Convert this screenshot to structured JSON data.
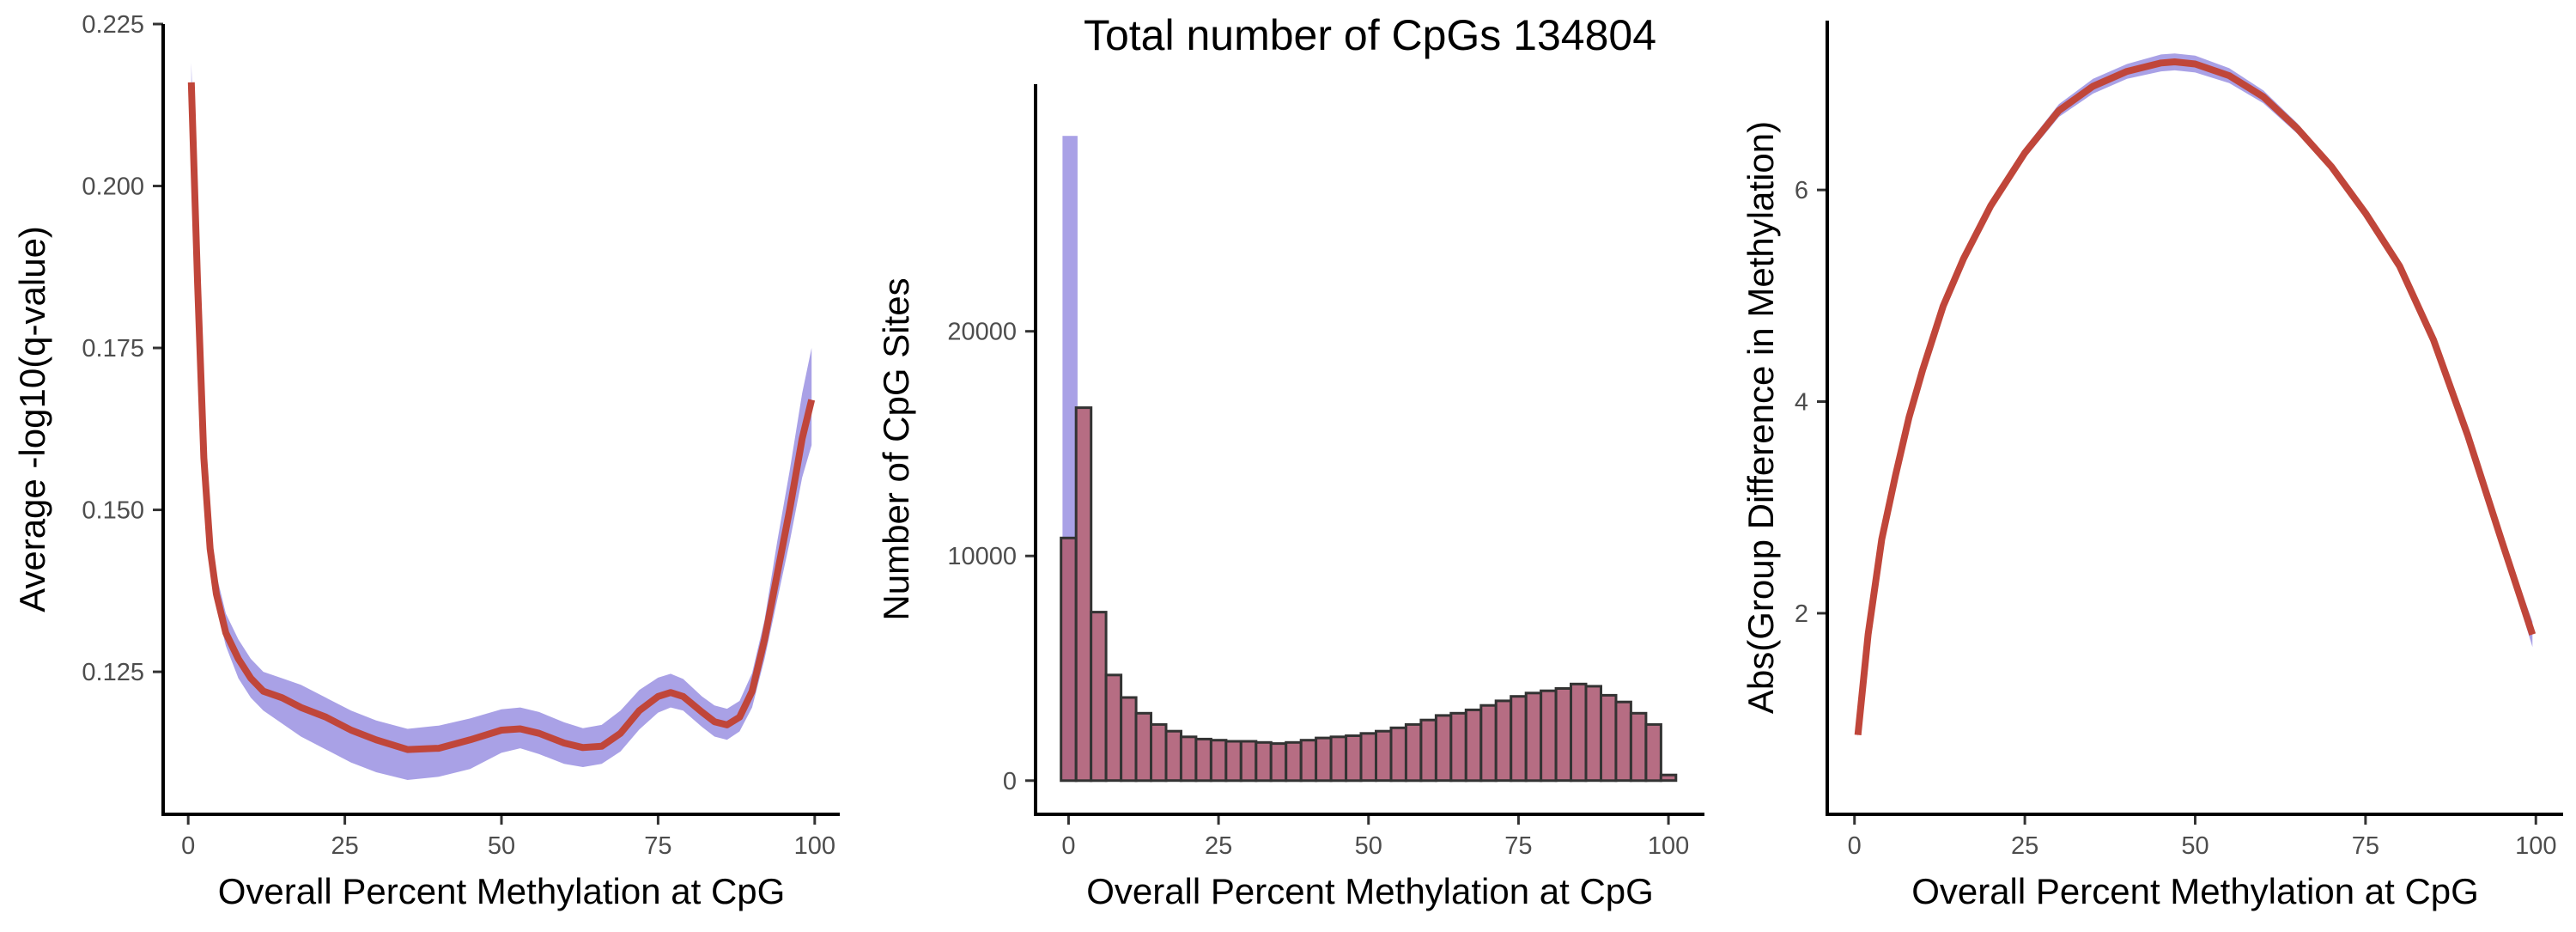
{
  "figure": {
    "title": "Total number of CpGs 134804"
  },
  "colors": {
    "line": "#C0463A",
    "ribbon": "#A9A1E6",
    "overlay_bar": "#A9A1E6",
    "bar_fill": "#B06178",
    "bar_stroke": "#333333"
  },
  "chart_data": [
    {
      "type": "line",
      "title": "",
      "xlabel": "Overall Percent Methylation at CpG",
      "ylabel": "Average -log10(q-value)",
      "xlim": [
        -4,
        104
      ],
      "ylim": [
        0.103,
        0.225
      ],
      "x_ticks": [
        0,
        25,
        50,
        75,
        100
      ],
      "x_tick_labels": [
        "0",
        "25",
        "50",
        "75",
        "100"
      ],
      "y_ticks": [
        0.125,
        0.15,
        0.175,
        0.2,
        0.225
      ],
      "y_tick_labels": [
        "0.125",
        "0.150",
        "0.175",
        "0.200",
        "0.225"
      ],
      "grid": false,
      "series": [
        {
          "x": [
            0.5,
            1.5,
            2.5,
            3.5,
            4.5,
            6,
            8,
            10,
            12,
            15,
            18,
            22,
            26,
            30,
            35,
            40,
            45,
            50,
            53,
            56,
            60,
            63,
            66,
            69,
            72,
            75,
            77,
            79,
            82,
            84,
            86,
            88,
            90,
            92,
            94,
            96,
            98,
            99.5
          ],
          "y": [
            0.216,
            0.185,
            0.158,
            0.144,
            0.137,
            0.131,
            0.127,
            0.124,
            0.122,
            0.121,
            0.1195,
            0.118,
            0.116,
            0.1145,
            0.113,
            0.1132,
            0.1145,
            0.116,
            0.1162,
            0.1155,
            0.114,
            0.1133,
            0.1135,
            0.1155,
            0.119,
            0.1212,
            0.1218,
            0.1212,
            0.1188,
            0.1173,
            0.1168,
            0.118,
            0.122,
            0.13,
            0.14,
            0.15,
            0.161,
            0.167
          ],
          "ci_lower": [
            0.214,
            0.183,
            0.156,
            0.142,
            0.135,
            0.129,
            0.124,
            0.121,
            0.119,
            0.117,
            0.115,
            0.113,
            0.111,
            0.1095,
            0.1083,
            0.1088,
            0.11,
            0.1125,
            0.1132,
            0.1123,
            0.1108,
            0.1103,
            0.1108,
            0.1127,
            0.1161,
            0.1187,
            0.1195,
            0.119,
            0.1165,
            0.115,
            0.1145,
            0.1158,
            0.1195,
            0.127,
            0.136,
            0.145,
            0.155,
            0.16
          ],
          "ci_upper": [
            0.219,
            0.188,
            0.161,
            0.147,
            0.14,
            0.134,
            0.13,
            0.127,
            0.125,
            0.124,
            0.123,
            0.121,
            0.119,
            0.1175,
            0.1162,
            0.1167,
            0.1178,
            0.1192,
            0.1195,
            0.1188,
            0.1172,
            0.1163,
            0.1168,
            0.119,
            0.1222,
            0.1241,
            0.1247,
            0.1239,
            0.1212,
            0.1198,
            0.1193,
            0.1205,
            0.1248,
            0.133,
            0.145,
            0.156,
            0.168,
            0.175
          ]
        }
      ]
    },
    {
      "type": "bar",
      "title": "Total number of CpGs 134804",
      "xlabel": "Overall Percent Methylation at CpG",
      "ylabel": "Number of CpG Sites",
      "xlim": [
        -5.5,
        106
      ],
      "ylim": [
        -1500,
        31000
      ],
      "x_ticks": [
        0,
        25,
        50,
        75,
        100
      ],
      "x_tick_labels": [
        "0",
        "25",
        "50",
        "75",
        "100"
      ],
      "y_ticks": [
        0,
        10000,
        20000
      ],
      "y_tick_labels": [
        "0",
        "10000",
        "20000"
      ],
      "grid": false,
      "bin_width": 2.5,
      "overlay": {
        "x_start": -1,
        "x_end": 1.5,
        "value": 28700
      },
      "bin_starts": [
        -1.25,
        1.25,
        3.75,
        6.25,
        8.75,
        11.25,
        13.75,
        16.25,
        18.75,
        21.25,
        23.75,
        26.25,
        28.75,
        31.25,
        33.75,
        36.25,
        38.75,
        41.25,
        43.75,
        46.25,
        48.75,
        51.25,
        53.75,
        56.25,
        58.75,
        61.25,
        63.75,
        66.25,
        68.75,
        71.25,
        73.75,
        76.25,
        78.75,
        81.25,
        83.75,
        86.25,
        88.75,
        91.25,
        93.75,
        96.25,
        98.75
      ],
      "values": [
        10800,
        16600,
        7500,
        4700,
        3700,
        3000,
        2500,
        2200,
        1950,
        1850,
        1800,
        1750,
        1750,
        1700,
        1650,
        1700,
        1800,
        1900,
        1950,
        2000,
        2100,
        2200,
        2350,
        2500,
        2700,
        2900,
        3000,
        3150,
        3350,
        3550,
        3750,
        3900,
        4000,
        4100,
        4300,
        4200,
        3800,
        3500,
        3000,
        2500,
        250
      ]
    },
    {
      "type": "line",
      "title": "",
      "xlabel": "Overall Percent Methylation at CpG",
      "ylabel": "Abs(Group Difference in Methylation)",
      "xlim": [
        -4,
        104
      ],
      "ylim": [
        0.1,
        7.6
      ],
      "x_ticks": [
        0,
        25,
        50,
        75,
        100
      ],
      "x_tick_labels": [
        "0",
        "25",
        "50",
        "75",
        "100"
      ],
      "y_ticks": [
        2,
        4,
        6
      ],
      "y_tick_labels": [
        "2",
        "4",
        "6"
      ],
      "grid": false,
      "series": [
        {
          "x": [
            0.5,
            2,
            4,
            6,
            8,
            10,
            13,
            16,
            20,
            25,
            30,
            35,
            40,
            45,
            47,
            50,
            55,
            60,
            65,
            70,
            75,
            80,
            85,
            90,
            95,
            99.5
          ],
          "y": [
            0.85,
            1.8,
            2.7,
            3.3,
            3.85,
            4.3,
            4.9,
            5.35,
            5.85,
            6.35,
            6.75,
            6.98,
            7.12,
            7.2,
            7.21,
            7.19,
            7.08,
            6.88,
            6.58,
            6.22,
            5.78,
            5.28,
            4.58,
            3.68,
            2.68,
            1.8
          ],
          "ci_lower": [
            0.83,
            1.77,
            2.66,
            3.26,
            3.81,
            4.26,
            4.86,
            5.31,
            5.81,
            6.3,
            6.69,
            6.91,
            7.05,
            7.12,
            7.13,
            7.11,
            7.01,
            6.82,
            6.53,
            6.18,
            5.75,
            5.25,
            4.55,
            3.64,
            2.62,
            1.68
          ],
          "ci_upper": [
            0.87,
            1.83,
            2.74,
            3.34,
            3.89,
            4.34,
            4.94,
            5.39,
            5.89,
            6.4,
            6.81,
            7.05,
            7.19,
            7.28,
            7.29,
            7.27,
            7.15,
            6.94,
            6.63,
            6.26,
            5.81,
            5.31,
            4.61,
            3.72,
            2.74,
            1.92
          ]
        }
      ]
    }
  ]
}
